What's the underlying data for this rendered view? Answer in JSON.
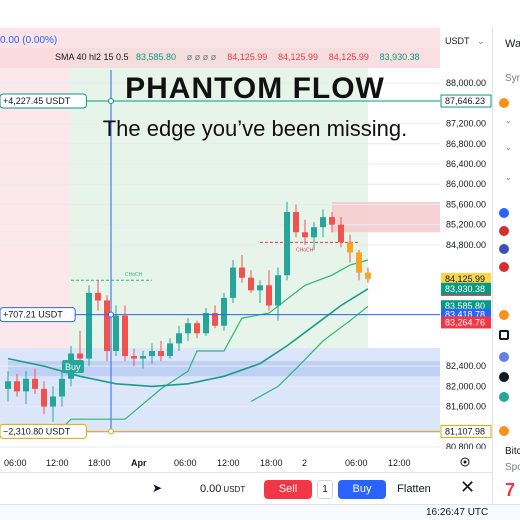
{
  "header": {
    "change_text": "0.00 (0.00%)",
    "indicator_label": "SMA 40 hl2 15 0.5",
    "indicator_values": [
      {
        "text": "83,585.80",
        "color": "#089981"
      },
      {
        "text": "ø ø ø ø",
        "color": "#787b86"
      },
      {
        "text": "84,125.99",
        "color": "#f23645"
      },
      {
        "text": "84,125.99",
        "color": "#f23645"
      },
      {
        "text": "84,125.99",
        "color": "#f23645"
      },
      {
        "text": "83,930.38",
        "color": "#089981"
      }
    ]
  },
  "overlay": {
    "title": "PHANTOM FLOW",
    "subtitle": "The edge you’ve been missing."
  },
  "price_axis": {
    "currency": "USDT",
    "ticks": [
      {
        "price": 88000,
        "label": "88,000.00"
      },
      {
        "price": 87200,
        "label": "87,200.00"
      },
      {
        "price": 86800,
        "label": "86,800.00"
      },
      {
        "price": 86400,
        "label": "86,400.00"
      },
      {
        "price": 86000,
        "label": "86,000.00"
      },
      {
        "price": 85600,
        "label": "85,600.00"
      },
      {
        "price": 85200,
        "label": "85,200.00"
      },
      {
        "price": 84800,
        "label": "84,800.00"
      },
      {
        "price": 82400,
        "label": "82,400.00"
      },
      {
        "price": 82000,
        "label": "82,000.00"
      },
      {
        "price": 81600,
        "label": "81,600.00"
      },
      {
        "price": 80800,
        "label": "80,800.00"
      }
    ],
    "badges": [
      {
        "price": 87646.23,
        "label": "87,646.23",
        "style": "outline-green"
      },
      {
        "price": 84125.99,
        "label": "84,125.99",
        "style": "fill-yellow"
      },
      {
        "price": 84125.99,
        "label": "84,125.99",
        "style": "fill-red",
        "offset": 1
      },
      {
        "price": 83930.38,
        "label": "83,930.38",
        "style": "fill-green"
      },
      {
        "price": 83585.8,
        "label": "83,585.80",
        "style": "fill-green"
      },
      {
        "price": 83418.78,
        "label": "83,418.78",
        "style": "fill-blue"
      },
      {
        "price": 83264.76,
        "label": "83,264.76",
        "style": "fill-red"
      },
      {
        "price": 81107.98,
        "label": "81,107.98",
        "style": "outline-yellow"
      }
    ]
  },
  "time_axis": {
    "ticks": [
      {
        "label": "06:00",
        "bold": false
      },
      {
        "label": "12:00",
        "bold": false
      },
      {
        "label": "18:00",
        "bold": false
      },
      {
        "label": "Apr",
        "bold": true
      },
      {
        "label": "06:00",
        "bold": false
      },
      {
        "label": "12:00",
        "bold": false
      },
      {
        "label": "18:00",
        "bold": false
      },
      {
        "label": "2",
        "bold": false
      },
      {
        "label": "06:00",
        "bold": false
      },
      {
        "label": "12:00",
        "bold": false
      }
    ]
  },
  "position_lines": [
    {
      "label": "+4,227.45 USDT",
      "price": 87646.23,
      "color": "#089981"
    },
    {
      "label": "+707.21 USDT",
      "price": 83418.78,
      "color": "#2962ff"
    },
    {
      "label": "−2,310.80 USDT",
      "price": 81107.98,
      "color": "#e0a800"
    }
  ],
  "annotations": {
    "choch_1": "CHoCH",
    "choch_2": "CHoCH",
    "buy_label": "Buy"
  },
  "trading_bar": {
    "quantity": "0.00",
    "quantity_unit": "USDT",
    "sell_label": "Sell",
    "qty_box": "1",
    "buy_label": "Buy",
    "flatten_label": "Flatten",
    "close_icon": "close-icon"
  },
  "sidebar": {
    "title": "Wa",
    "search": "Syr",
    "current_price_partial": "7",
    "item_name": "Bitc",
    "item_sub": "Spo"
  },
  "status": {
    "clock": "16:26:47 UTC"
  },
  "chart_data": {
    "type": "candlestick",
    "title": "",
    "xlabel": "",
    "ylabel": "",
    "ylim": [
      80800,
      88300
    ],
    "x_index_range": [
      0,
      40
    ],
    "candles": [
      {
        "x": 0,
        "o": 81950,
        "h": 82300,
        "l": 81700,
        "c": 82100
      },
      {
        "x": 1,
        "o": 82100,
        "h": 82250,
        "l": 81800,
        "c": 81900
      },
      {
        "x": 2,
        "o": 81900,
        "h": 82300,
        "l": 81650,
        "c": 82150
      },
      {
        "x": 3,
        "o": 82150,
        "h": 82350,
        "l": 81850,
        "c": 81950
      },
      {
        "x": 4,
        "o": 81950,
        "h": 82100,
        "l": 81450,
        "c": 81600
      },
      {
        "x": 5,
        "o": 81600,
        "h": 82000,
        "l": 81300,
        "c": 81800
      },
      {
        "x": 6,
        "o": 81800,
        "h": 82300,
        "l": 81600,
        "c": 82150
      },
      {
        "x": 7,
        "o": 82150,
        "h": 82800,
        "l": 82000,
        "c": 82650
      },
      {
        "x": 8,
        "o": 82650,
        "h": 83100,
        "l": 82500,
        "c": 82550
      },
      {
        "x": 9,
        "o": 82550,
        "h": 84000,
        "l": 82400,
        "c": 83850
      },
      {
        "x": 10,
        "o": 83850,
        "h": 84100,
        "l": 83500,
        "c": 83700
      },
      {
        "x": 11,
        "o": 83700,
        "h": 83800,
        "l": 82500,
        "c": 82700
      },
      {
        "x": 12,
        "o": 82700,
        "h": 83600,
        "l": 82600,
        "c": 83400
      },
      {
        "x": 13,
        "o": 83400,
        "h": 83600,
        "l": 82500,
        "c": 82600
      },
      {
        "x": 14,
        "o": 82600,
        "h": 82750,
        "l": 82400,
        "c": 82550
      },
      {
        "x": 15,
        "o": 82550,
        "h": 82700,
        "l": 82350,
        "c": 82600
      },
      {
        "x": 16,
        "o": 82600,
        "h": 82850,
        "l": 82450,
        "c": 82700
      },
      {
        "x": 17,
        "o": 82700,
        "h": 82900,
        "l": 82500,
        "c": 82600
      },
      {
        "x": 18,
        "o": 82600,
        "h": 82950,
        "l": 82550,
        "c": 82850
      },
      {
        "x": 19,
        "o": 82850,
        "h": 83200,
        "l": 82700,
        "c": 83050
      },
      {
        "x": 20,
        "o": 83050,
        "h": 83350,
        "l": 82900,
        "c": 83250
      },
      {
        "x": 21,
        "o": 83250,
        "h": 83300,
        "l": 82950,
        "c": 83050
      },
      {
        "x": 22,
        "o": 83050,
        "h": 83550,
        "l": 83000,
        "c": 83450
      },
      {
        "x": 23,
        "o": 83450,
        "h": 83600,
        "l": 83150,
        "c": 83200
      },
      {
        "x": 24,
        "o": 83200,
        "h": 83850,
        "l": 83100,
        "c": 83750
      },
      {
        "x": 25,
        "o": 83750,
        "h": 84500,
        "l": 83650,
        "c": 84350
      },
      {
        "x": 26,
        "o": 84350,
        "h": 84600,
        "l": 84050,
        "c": 84150
      },
      {
        "x": 27,
        "o": 84150,
        "h": 84300,
        "l": 83850,
        "c": 83900
      },
      {
        "x": 28,
        "o": 83900,
        "h": 84100,
        "l": 83650,
        "c": 84000
      },
      {
        "x": 29,
        "o": 84000,
        "h": 84300,
        "l": 83500,
        "c": 83600
      },
      {
        "x": 30,
        "o": 83600,
        "h": 84350,
        "l": 83300,
        "c": 84200
      },
      {
        "x": 31,
        "o": 84200,
        "h": 85650,
        "l": 84100,
        "c": 85450
      },
      {
        "x": 32,
        "o": 85450,
        "h": 85600,
        "l": 84950,
        "c": 85050
      },
      {
        "x": 33,
        "o": 85050,
        "h": 85300,
        "l": 84800,
        "c": 84950
      },
      {
        "x": 34,
        "o": 84950,
        "h": 85250,
        "l": 84700,
        "c": 85150
      },
      {
        "x": 35,
        "o": 85150,
        "h": 85500,
        "l": 84950,
        "c": 85350
      },
      {
        "x": 36,
        "o": 85350,
        "h": 85450,
        "l": 85050,
        "c": 85200
      },
      {
        "x": 37,
        "o": 85200,
        "h": 85350,
        "l": 84750,
        "c": 84850
      },
      {
        "x": 38,
        "o": 84850,
        "h": 85000,
        "l": 84450,
        "c": 84650
      },
      {
        "x": 39,
        "o": 84650,
        "h": 84700,
        "l": 84100,
        "c": 84250
      },
      {
        "x": 40,
        "o": 84250,
        "h": 84350,
        "l": 84050,
        "c": 84126
      }
    ],
    "sma_line": [
      [
        0,
        82550
      ],
      [
        4,
        82400
      ],
      [
        8,
        82200
      ],
      [
        12,
        82050
      ],
      [
        16,
        82000
      ],
      [
        20,
        82050
      ],
      [
        24,
        82200
      ],
      [
        28,
        82450
      ],
      [
        31,
        82800
      ],
      [
        34,
        83200
      ],
      [
        37,
        83600
      ],
      [
        40,
        83930
      ]
    ],
    "trail_line": [
      [
        0,
        81100
      ],
      [
        5,
        81000
      ],
      [
        7,
        81350
      ],
      [
        13,
        81350
      ],
      [
        17,
        81950
      ],
      [
        20,
        82300
      ],
      [
        21,
        82700
      ],
      [
        24,
        82700
      ],
      [
        26,
        83350
      ],
      [
        29,
        83450
      ],
      [
        33,
        84000
      ],
      [
        36,
        84200
      ],
      [
        38,
        84400
      ],
      [
        40,
        84500
      ]
    ],
    "trail_line_late": [
      [
        27,
        81700
      ],
      [
        30,
        82000
      ],
      [
        32,
        82350
      ],
      [
        35,
        82900
      ],
      [
        38,
        83300
      ],
      [
        40,
        83585
      ]
    ],
    "choch_levels": [
      {
        "x_start": 7,
        "x_end": 16,
        "price": 84100
      },
      {
        "x_start": 28,
        "x_end": 39,
        "price": 84850
      }
    ],
    "zones": [
      {
        "name": "supply",
        "x_start": 36,
        "x_end": 44,
        "top": 85650,
        "bottom": 85050,
        "color": "#f7c9cc"
      },
      {
        "name": "demand",
        "x_start": 0,
        "x_end": 44,
        "top": 82500,
        "bottom": 82200,
        "color": "#b9cbf2"
      }
    ]
  }
}
